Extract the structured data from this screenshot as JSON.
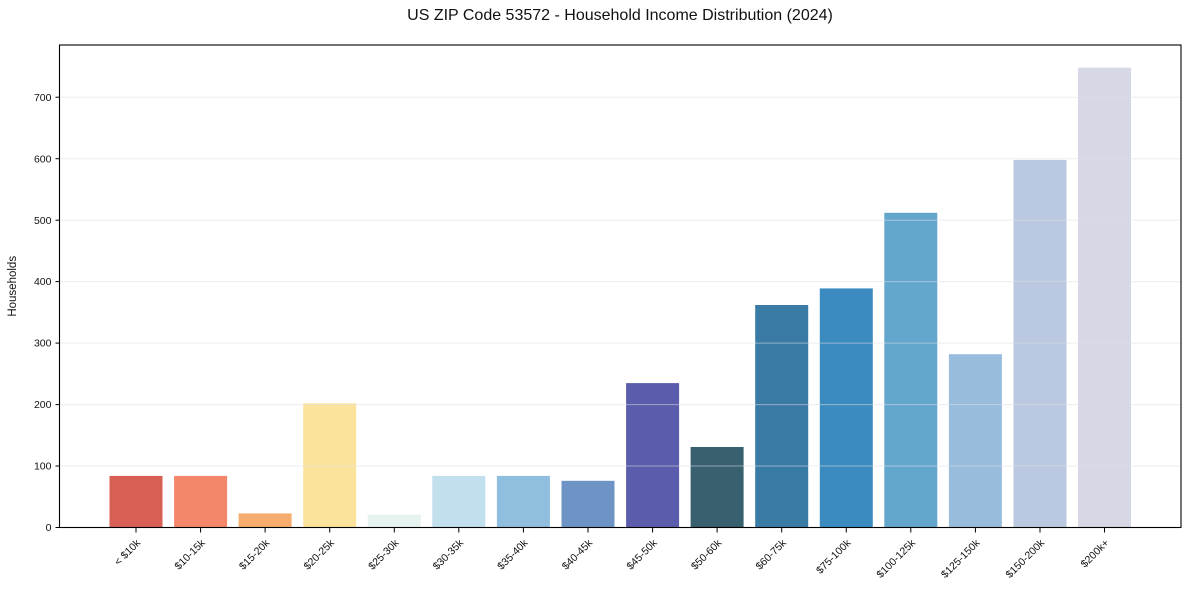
{
  "chart_data": {
    "type": "bar",
    "title": "US ZIP Code 53572 - Household Income Distribution (2024)",
    "xlabel": "",
    "ylabel": "Households",
    "categories": [
      "< $10k",
      "$10-15k",
      "$15-20k",
      "$20-25k",
      "$25-30k",
      "$30-35k",
      "$35-40k",
      "$40-45k",
      "$45-50k",
      "$50-60k",
      "$60-75k",
      "$75-100k",
      "$100-125k",
      "$125-150k",
      "$150-200k",
      "$200k+"
    ],
    "values": [
      84,
      84,
      23,
      202,
      21,
      84,
      84,
      76,
      235,
      131,
      362,
      389,
      512,
      282,
      598,
      748
    ],
    "bar_colors": [
      "#d85f54",
      "#f4876a",
      "#f6ac6d",
      "#fce39c",
      "#e6f3f1",
      "#c2dfee",
      "#90bede",
      "#6e93c5",
      "#5b5cac",
      "#38606f",
      "#3a7ba6",
      "#3b8bc0",
      "#62a6cc",
      "#97bcdc",
      "#bac9e1",
      "#d7d8e6"
    ],
    "yticks": [
      0,
      100,
      200,
      300,
      400,
      500,
      600,
      700
    ],
    "ylim": [
      0,
      785
    ],
    "grid": "horizontal",
    "grid_color": "#dcdfe5",
    "axis_color": "#000000",
    "tick_label_color": "#111111",
    "legend": "none",
    "background": "#ffffff"
  }
}
